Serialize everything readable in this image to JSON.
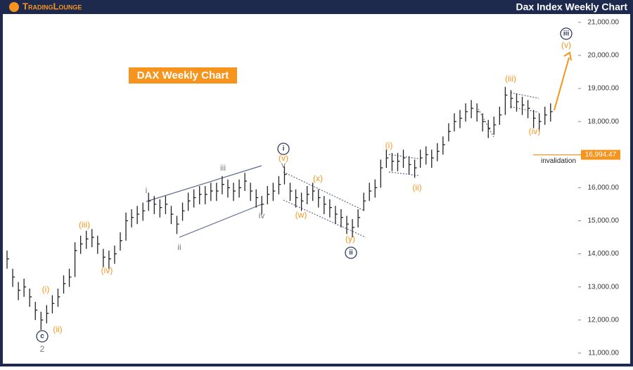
{
  "chart_data": {
    "type": "ohlc",
    "brand": "TradingLounge",
    "title": "Dax Index Weekly Chart",
    "subtitle": "DAX Weekly Chart",
    "color": "#222222",
    "close": [
      13850,
      13300,
      12900,
      13000,
      12700,
      12300,
      12000,
      12200,
      12500,
      12700,
      13100,
      13300,
      14100,
      14300,
      14450,
      14500,
      14300,
      13900,
      13850,
      14000,
      14400,
      15000,
      15100,
      15200,
      15300,
      15600,
      15500,
      15400,
      15500,
      15200,
      14900,
      15300,
      15600,
      15700,
      15800,
      15800,
      15900,
      15900,
      16100,
      16000,
      15900,
      16000,
      16200,
      15900,
      15700,
      15500,
      15800,
      15900,
      16100,
      16400,
      15900,
      15700,
      15600,
      15800,
      15900,
      15700,
      15500,
      15400,
      15200,
      15100,
      14900,
      14800,
      15100,
      15600,
      15900,
      16000,
      16600,
      16900,
      16800,
      16800,
      16900,
      16700,
      16600,
      16900,
      17000,
      16900,
      17100,
      17300,
      17700,
      18000,
      18100,
      18300,
      18400,
      18300,
      18000,
      17800,
      17900,
      18200,
      18800,
      18700,
      18600,
      18500,
      18400,
      18100,
      18000,
      18200,
      18300
    ],
    "high": [
      14100,
      13550,
      13150,
      13250,
      12950,
      12550,
      12250,
      12450,
      12750,
      12950,
      13350,
      13550,
      14350,
      14550,
      14700,
      14750,
      14550,
      14150,
      14100,
      14250,
      14650,
      15250,
      15350,
      15450,
      15550,
      15850,
      15750,
      15650,
      15750,
      15450,
      15150,
      15550,
      15850,
      15950,
      16050,
      16050,
      16150,
      16150,
      16350,
      16250,
      16150,
      16250,
      16450,
      16150,
      15950,
      15750,
      16050,
      16150,
      16350,
      16650,
      16150,
      15950,
      15850,
      16050,
      16150,
      15950,
      15750,
      15650,
      15450,
      15350,
      15150,
      15050,
      15350,
      15850,
      16150,
      16250,
      16850,
      17150,
      17050,
      17050,
      17150,
      16950,
      16850,
      17150,
      17250,
      17150,
      17350,
      17550,
      17950,
      18250,
      18350,
      18550,
      18650,
      18550,
      18250,
      18050,
      18150,
      18450,
      19050,
      18950,
      18850,
      18750,
      18650,
      18350,
      18250,
      18450,
      18550
    ],
    "low": [
      13550,
      13000,
      12600,
      12700,
      12400,
      12000,
      11700,
      11900,
      12200,
      12400,
      12800,
      13000,
      13300,
      14000,
      14150,
      14200,
      14000,
      13600,
      13550,
      13700,
      14100,
      14400,
      14800,
      14900,
      15000,
      15300,
      15200,
      15100,
      15200,
      14900,
      14600,
      15000,
      15300,
      15400,
      15500,
      15500,
      15600,
      15600,
      15800,
      15700,
      15600,
      15700,
      15900,
      15600,
      15400,
      15200,
      15500,
      15600,
      15800,
      16100,
      15600,
      15400,
      15300,
      15500,
      15600,
      15400,
      15200,
      15100,
      14900,
      14800,
      14600,
      14500,
      14800,
      15300,
      15600,
      15700,
      16000,
      16600,
      16500,
      16500,
      16600,
      16400,
      16300,
      16600,
      16700,
      16600,
      16800,
      17000,
      17400,
      17700,
      17800,
      18000,
      18100,
      18000,
      17700,
      17500,
      17600,
      17900,
      18200,
      18400,
      18300,
      18200,
      18100,
      17800,
      17700,
      17900,
      18000
    ],
    "ylim": [
      10680,
      21250
    ],
    "yticks": [
      {
        "value": 11000,
        "label": "11,000.00"
      },
      {
        "value": 12000,
        "label": "12,000.00"
      },
      {
        "value": 13000,
        "label": "13,000.00"
      },
      {
        "value": 14000,
        "label": "14,000.00"
      },
      {
        "value": 15000,
        "label": "15,000.00"
      },
      {
        "value": 16000,
        "label": "16,000.00"
      },
      {
        "value": 17000,
        "label": "17,000.00"
      },
      {
        "value": 18000,
        "label": "18,000.00"
      },
      {
        "value": 19000,
        "label": "19,000.00"
      },
      {
        "value": 20000,
        "label": "20,000.00"
      },
      {
        "value": 21000,
        "label": "21,000.00"
      }
    ],
    "invalidation": {
      "value": 16994.47,
      "label": "16,994.47",
      "text": "invalidation"
    },
    "annotations": [
      "(i)",
      "(ii)",
      "(iii)",
      "(iv)",
      "c",
      "2",
      "i",
      "ii",
      "iii",
      "iv",
      "v",
      "(v)",
      "i",
      "(w)",
      "(x)",
      "(y)",
      "ii",
      "(i)",
      "(ii)",
      "(iii)",
      "(iv)",
      "(v)",
      "iii"
    ]
  }
}
